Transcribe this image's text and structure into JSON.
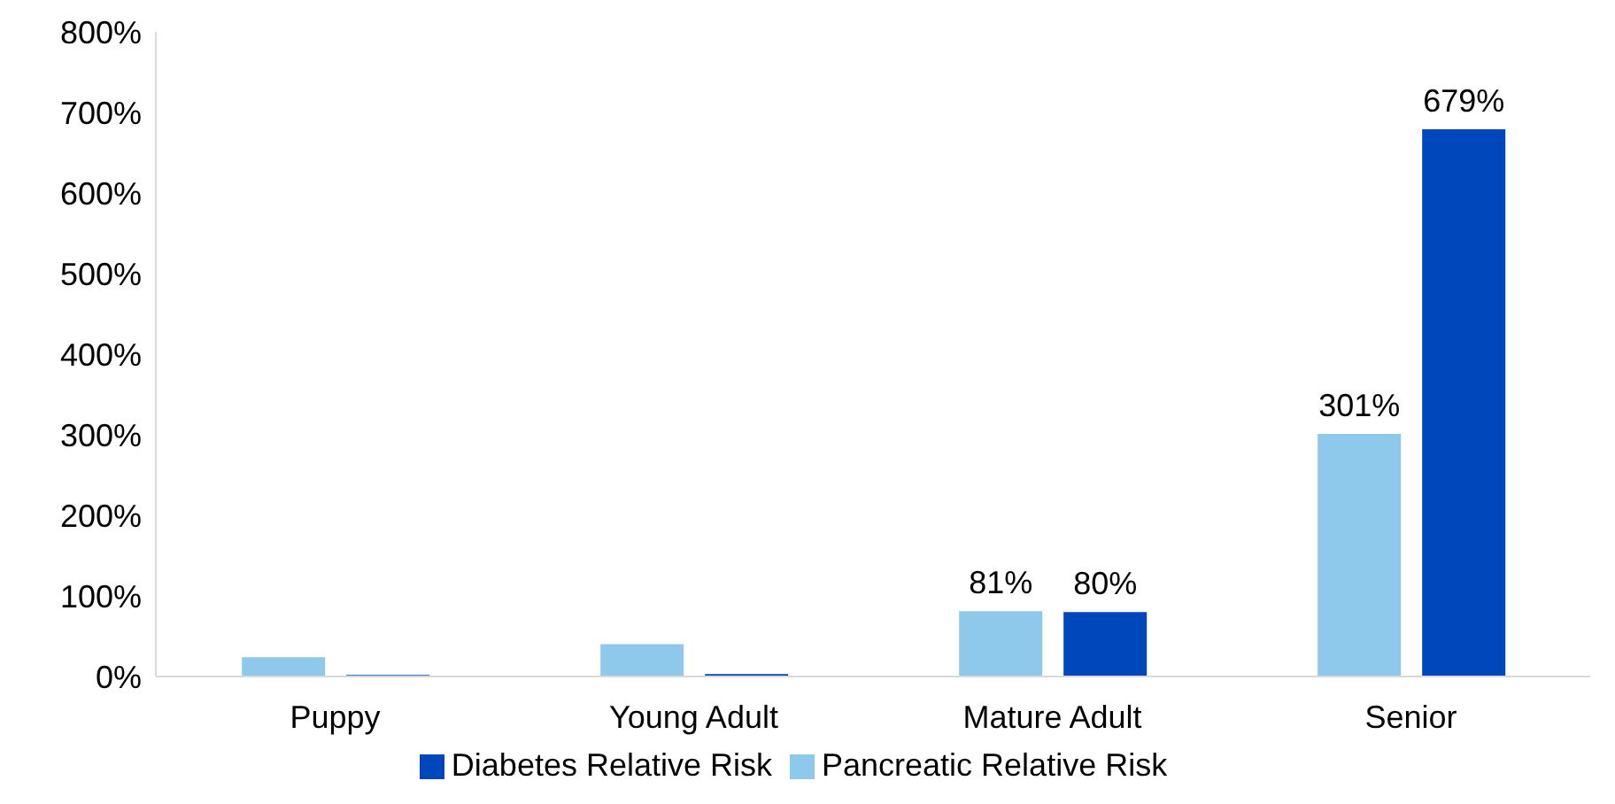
{
  "chart_data": {
    "type": "bar",
    "categories": [
      "Puppy",
      "Young Adult",
      "Mature Adult",
      "Senior"
    ],
    "series": [
      {
        "name": "Pancreatic Relative Risk",
        "color": "#8ec8ea",
        "values": [
          24,
          40,
          81,
          301
        ],
        "value_labels": [
          null,
          null,
          "81%",
          "301%"
        ]
      },
      {
        "name": "Diabetes Relative Risk",
        "color": "#0047bb",
        "values": [
          2,
          3,
          80,
          679
        ],
        "value_labels": [
          null,
          null,
          "80%",
          "679%"
        ]
      }
    ],
    "ylim": [
      0,
      800
    ],
    "yticks": [
      {
        "value": 0,
        "label": "0%"
      },
      {
        "value": 100,
        "label": "100%"
      },
      {
        "value": 200,
        "label": "200%"
      },
      {
        "value": 300,
        "label": "300%"
      },
      {
        "value": 400,
        "label": "400%"
      },
      {
        "value": 500,
        "label": "500%"
      },
      {
        "value": 600,
        "label": "600%"
      },
      {
        "value": 700,
        "label": "700%"
      },
      {
        "value": 800,
        "label": "800%"
      }
    ],
    "grid": false,
    "legend": "bottom"
  }
}
